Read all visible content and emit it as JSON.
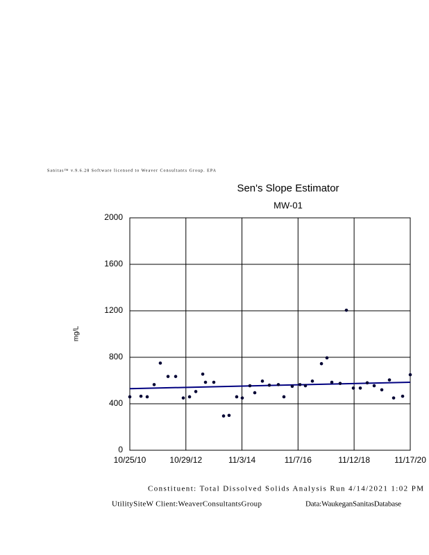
{
  "header": "Sanitas™ v.9.6.28 Software licensed to Weaver Consultants Group. EPA",
  "chart_data": {
    "type": "scatter",
    "title": "Sen's Slope Estimator",
    "subtitle": "MW-01",
    "y_label": "mg/L",
    "x": [
      "2010-10-25",
      "2011-03-20",
      "2011-06-10",
      "2011-09-09",
      "2011-11-29",
      "2012-03-09",
      "2012-06-17",
      "2012-09-25",
      "2012-12-16",
      "2013-03-08",
      "2013-06-07",
      "2013-07-13",
      "2013-10-30",
      "2014-03-07",
      "2014-05-18",
      "2014-08-26",
      "2014-11-07",
      "2015-02-15",
      "2015-04-20",
      "2015-07-29",
      "2015-10-28",
      "2016-02-23",
      "2016-05-06",
      "2016-08-23",
      "2016-12-02",
      "2017-02-12",
      "2017-05-14",
      "2017-09-10",
      "2017-11-21",
      "2018-01-24",
      "2018-05-13",
      "2018-08-03",
      "2018-11-02",
      "2019-02-01",
      "2019-05-03",
      "2019-08-02",
      "2019-11-10",
      "2020-02-18",
      "2020-04-13",
      "2020-08-09",
      "2020-11-17"
    ],
    "values": [
      460,
      465,
      460,
      565,
      750,
      635,
      635,
      450,
      460,
      505,
      655,
      585,
      585,
      295,
      300,
      460,
      450,
      555,
      495,
      595,
      560,
      565,
      460,
      550,
      565,
      555,
      595,
      745,
      795,
      585,
      575,
      1205,
      535,
      535,
      580,
      555,
      520,
      605,
      450,
      465,
      650
    ],
    "color": "#000033",
    "trend": {
      "x": [
        "2010-10-25",
        "2020-11-17"
      ],
      "values": [
        530,
        585
      ],
      "color": "#000080"
    },
    "xlim": [
      "2010-10-25",
      "2020-11-17"
    ],
    "xticks": [
      {
        "value": "2010-10-25",
        "label": "10/25/10"
      },
      {
        "value": "2012-10-29",
        "label": "10/29/12"
      },
      {
        "value": "2014-11-03",
        "label": "11/3/14"
      },
      {
        "value": "2016-11-07",
        "label": "11/7/16"
      },
      {
        "value": "2018-11-12",
        "label": "11/12/18"
      },
      {
        "value": "2020-11-17",
        "label": "11/17/20"
      }
    ],
    "ylim": [
      0,
      2000
    ],
    "yticks": [
      0,
      400,
      800,
      1200,
      1600,
      2000
    ],
    "grid": true
  },
  "footer": {
    "line1": "Constituent: Total Dissolved Solids Analysis Run 4/14/2021 1:02 PM",
    "line2a": "UtilitySiteW Client:WeaverConsultantsGroup",
    "line2b": "Data:WaukeganSanitasDatabase"
  }
}
